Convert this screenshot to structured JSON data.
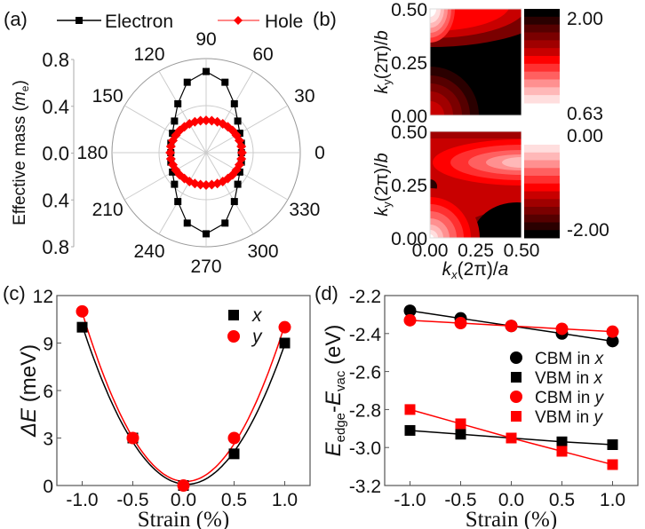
{
  "chart_data": [
    {
      "panel": "(a)",
      "type": "polar-scatter",
      "ylabel": "Effective mass (m_e)",
      "ylabel_parts": [
        "Effective mass (",
        "m",
        "e",
        ")"
      ],
      "radial_ticks": [
        "0.8",
        "0.4",
        "0.0",
        "0.4",
        "0.8"
      ],
      "rlim": [
        0,
        0.8
      ],
      "angle_ticks": [
        "0",
        "30",
        "60",
        "90",
        "120",
        "150",
        "180",
        "210",
        "240",
        "270",
        "300",
        "330"
      ],
      "grid": true,
      "legend_placement": "top",
      "series": [
        {
          "name": "Electron",
          "color": "#000000",
          "marker": "square",
          "angles_deg": [
            0,
            15,
            30,
            45,
            60,
            75,
            90,
            105,
            120,
            135,
            150,
            165,
            180,
            195,
            210,
            225,
            240,
            255,
            270,
            285,
            300,
            315,
            330,
            345
          ],
          "r": [
            0.3,
            0.31,
            0.33,
            0.38,
            0.48,
            0.62,
            0.69,
            0.62,
            0.48,
            0.38,
            0.33,
            0.31,
            0.3,
            0.31,
            0.33,
            0.38,
            0.48,
            0.62,
            0.69,
            0.62,
            0.48,
            0.38,
            0.33,
            0.31
          ]
        },
        {
          "name": "Hole",
          "color": "#ff0000",
          "marker": "diamond",
          "angles_deg": [
            0,
            10,
            20,
            30,
            40,
            50,
            60,
            70,
            80,
            90,
            100,
            110,
            120,
            130,
            140,
            150,
            160,
            170,
            180,
            190,
            200,
            210,
            220,
            230,
            240,
            250,
            260,
            270,
            280,
            290,
            300,
            310,
            320,
            330,
            340,
            350
          ],
          "r": [
            0.305,
            0.304,
            0.301,
            0.297,
            0.293,
            0.287,
            0.283,
            0.279,
            0.276,
            0.275,
            0.276,
            0.279,
            0.283,
            0.287,
            0.293,
            0.297,
            0.301,
            0.304,
            0.305,
            0.304,
            0.301,
            0.297,
            0.293,
            0.287,
            0.283,
            0.279,
            0.276,
            0.275,
            0.276,
            0.279,
            0.283,
            0.287,
            0.293,
            0.297,
            0.301,
            0.304
          ]
        }
      ]
    },
    {
      "panel": "(b)",
      "type": "heatmap",
      "ylabel_parts": [
        "k",
        "y",
        "(2π)/",
        "b"
      ],
      "xlabel_parts": [
        "k",
        "x",
        "(2π)/",
        "a"
      ],
      "x_ticks": [
        "0.00",
        "0.25",
        "0.50"
      ],
      "y_ticks": [
        "0.00",
        "0.25",
        "0.50"
      ],
      "xlim": [
        0,
        0.5
      ],
      "ylim": [
        0,
        0.5
      ],
      "top_colorbar": {
        "max": "2.00",
        "min": "0.63"
      },
      "bottom_colorbar": {
        "max": "0.00",
        "min": "-2.00"
      },
      "colormap": [
        "#000000",
        "#2a0000",
        "#550000",
        "#7a0000",
        "#a00000",
        "#c80000",
        "#ff0000",
        "#ff3030",
        "#ff6060",
        "#ff9090",
        "#ffb8b8",
        "#ffdede"
      ]
    },
    {
      "panel": "(c)",
      "type": "scatter",
      "xlabel": "Strain (%)",
      "ylabel_parts": [
        "ΔE",
        " (meV)"
      ],
      "x_ticks": [
        "-1.0",
        "-0.5",
        "0.0",
        "0.5",
        "1.0"
      ],
      "y_ticks": [
        "0",
        "3",
        "6",
        "9",
        "12"
      ],
      "xlim": [
        -1.25,
        1.25
      ],
      "ylim": [
        0,
        12
      ],
      "legend_placement": "top-right",
      "x": [
        -1.0,
        -0.5,
        0.0,
        0.5,
        1.0
      ],
      "series": [
        {
          "name": "x",
          "color": "#000000",
          "marker": "square",
          "values": [
            10,
            3,
            0,
            2,
            9
          ],
          "fit": "quadratic"
        },
        {
          "name": "y",
          "color": "#ff0000",
          "marker": "circle",
          "values": [
            11,
            3,
            0,
            3,
            10
          ],
          "fit": "quadratic"
        }
      ]
    },
    {
      "panel": "(d)",
      "type": "line",
      "xlabel": "Strain (%)",
      "ylabel_parts": [
        "E",
        "edge",
        "-",
        "E",
        "vac",
        " (eV)"
      ],
      "x_ticks": [
        "-1.0",
        "-0.5",
        "0.0",
        "0.5",
        "1.0"
      ],
      "y_ticks": [
        "-2.2",
        "-2.4",
        "-2.6",
        "-2.8",
        "-3.0",
        "-3.2"
      ],
      "xlim": [
        -1.25,
        1.25
      ],
      "ylim": [
        -3.2,
        -2.2
      ],
      "legend_placement": "right",
      "x": [
        -1.0,
        -0.5,
        0.0,
        0.5,
        1.0
      ],
      "series": [
        {
          "name": "CBM in x",
          "label": "CBM in ",
          "axis": "x",
          "color": "#000000",
          "marker": "circle",
          "values": [
            -2.28,
            -2.32,
            -2.36,
            -2.4,
            -2.44
          ]
        },
        {
          "name": "VBM in x",
          "label": "VBM in ",
          "axis": "x",
          "color": "#000000",
          "marker": "square",
          "values": [
            -2.91,
            -2.93,
            -2.95,
            -2.97,
            -2.985
          ]
        },
        {
          "name": "CBM in y",
          "label": "CBM in ",
          "axis": "y",
          "color": "#ff0000",
          "marker": "circle",
          "values": [
            -2.33,
            -2.345,
            -2.36,
            -2.375,
            -2.39
          ]
        },
        {
          "name": "VBM in y",
          "label": "VBM in ",
          "axis": "y",
          "color": "#ff0000",
          "marker": "square",
          "values": [
            -2.8,
            -2.875,
            -2.95,
            -3.02,
            -3.09
          ]
        }
      ]
    }
  ]
}
